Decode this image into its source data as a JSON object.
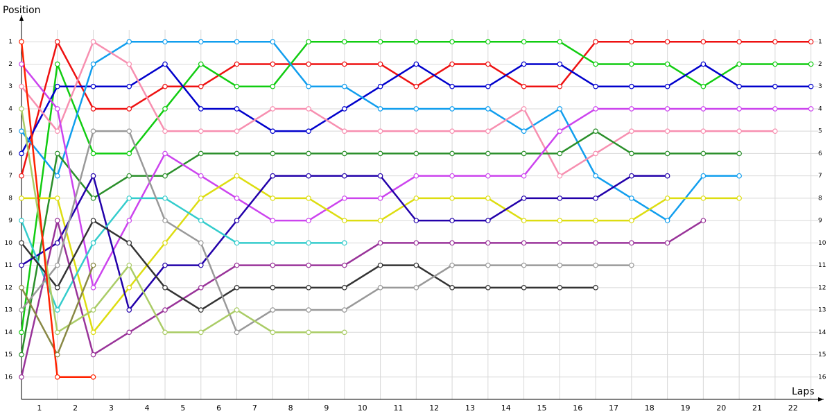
{
  "chart_data": {
    "type": "line",
    "x_label": "Laps",
    "y_label": "Position",
    "x": [
      0,
      1,
      2,
      3,
      4,
      5,
      6,
      7,
      8,
      9,
      10,
      11,
      12,
      13,
      14,
      15,
      16,
      17,
      18,
      19,
      20,
      21,
      22
    ],
    "xlim": [
      0,
      22.2
    ],
    "ylim": [
      17,
      0
    ],
    "xticks": [
      {
        "value": 0.5,
        "label": "1"
      },
      {
        "value": 1.5,
        "label": "2"
      },
      {
        "value": 2.5,
        "label": "3"
      },
      {
        "value": 3.5,
        "label": "4"
      },
      {
        "value": 4.5,
        "label": "5"
      },
      {
        "value": 5.5,
        "label": "6"
      },
      {
        "value": 6.5,
        "label": "7"
      },
      {
        "value": 7.5,
        "label": "8"
      },
      {
        "value": 8.5,
        "label": "9"
      },
      {
        "value": 9.5,
        "label": "10"
      },
      {
        "value": 10.5,
        "label": "11"
      },
      {
        "value": 11.5,
        "label": "12"
      },
      {
        "value": 12.5,
        "label": "13"
      },
      {
        "value": 13.5,
        "label": "14"
      },
      {
        "value": 14.5,
        "label": "15"
      },
      {
        "value": 15.5,
        "label": "16"
      },
      {
        "value": 16.5,
        "label": "17"
      },
      {
        "value": 17.5,
        "label": "18"
      },
      {
        "value": 18.5,
        "label": "19"
      },
      {
        "value": 19.5,
        "label": "20"
      },
      {
        "value": 20.5,
        "label": "21"
      },
      {
        "value": 21.5,
        "label": "22"
      }
    ],
    "yticks": [
      1,
      2,
      3,
      4,
      5,
      6,
      7,
      8,
      9,
      10,
      11,
      12,
      13,
      14,
      15,
      16
    ],
    "grid": true,
    "series": [
      {
        "color": "#ee1111",
        "values": [
          7,
          1,
          4,
          4,
          3,
          3,
          2,
          2,
          2,
          2,
          2,
          3,
          2,
          2,
          3,
          3,
          1,
          1,
          1,
          1,
          1,
          1,
          1
        ]
      },
      {
        "color": "#11cc11",
        "values": [
          14,
          2,
          6,
          6,
          4,
          2,
          3,
          3,
          1,
          1,
          1,
          1,
          1,
          1,
          1,
          1,
          2,
          2,
          2,
          3,
          2,
          2,
          2
        ]
      },
      {
        "color": "#0000cc",
        "values": [
          6,
          3,
          3,
          3,
          2,
          4,
          4,
          5,
          5,
          4,
          3,
          2,
          3,
          3,
          2,
          2,
          3,
          3,
          3,
          2,
          3,
          3,
          3
        ]
      },
      {
        "color": "#119eee",
        "values": [
          5,
          7,
          2,
          1,
          1,
          1,
          1,
          1,
          3,
          3,
          4,
          4,
          4,
          4,
          5,
          4,
          7,
          8,
          9,
          7,
          7,
          null,
          null
        ]
      },
      {
        "color": "#f78fb0",
        "values": [
          3,
          5,
          1,
          2,
          5,
          5,
          5,
          4,
          4,
          5,
          5,
          5,
          5,
          5,
          4,
          7,
          6,
          5,
          5,
          5,
          5,
          5,
          null
        ]
      },
      {
        "color": "#2a8f2a",
        "values": [
          15,
          6,
          8,
          7,
          7,
          6,
          6,
          6,
          6,
          6,
          6,
          6,
          6,
          6,
          6,
          6,
          5,
          6,
          6,
          6,
          6,
          null,
          null
        ]
      },
      {
        "color": "#cc44ee",
        "values": [
          2,
          4,
          12,
          9,
          6,
          7,
          8,
          9,
          9,
          8,
          8,
          7,
          7,
          7,
          7,
          5,
          4,
          4,
          4,
          4,
          4,
          4,
          4
        ]
      },
      {
        "color": "#dddd11",
        "values": [
          8,
          8,
          14,
          12,
          10,
          8,
          7,
          8,
          8,
          9,
          9,
          8,
          8,
          8,
          9,
          9,
          9,
          9,
          8,
          8,
          8,
          null,
          null
        ]
      },
      {
        "color": "#2200aa",
        "values": [
          11,
          10,
          7,
          13,
          11,
          11,
          9,
          7,
          7,
          7,
          7,
          9,
          9,
          9,
          8,
          8,
          8,
          7,
          7,
          null,
          null,
          null,
          null
        ]
      },
      {
        "color": "#33cccc",
        "values": [
          9,
          13,
          10,
          8,
          8,
          9,
          10,
          10,
          10,
          10,
          null,
          null,
          null,
          null,
          null,
          null,
          null,
          null,
          null,
          null,
          null,
          null,
          null
        ]
      },
      {
        "color": "#993399",
        "values": [
          16,
          9,
          15,
          14,
          13,
          12,
          11,
          11,
          11,
          11,
          10,
          10,
          10,
          10,
          10,
          10,
          10,
          10,
          10,
          9,
          null,
          null,
          null
        ]
      },
      {
        "color": "#333333",
        "values": [
          10,
          12,
          9,
          10,
          12,
          13,
          12,
          12,
          12,
          12,
          11,
          11,
          12,
          12,
          12,
          12,
          12,
          null,
          null,
          null,
          null,
          null,
          null
        ]
      },
      {
        "color": "#999999",
        "values": [
          13,
          11,
          5,
          5,
          9,
          10,
          14,
          13,
          13,
          13,
          12,
          12,
          11,
          11,
          11,
          11,
          11,
          11,
          null,
          null,
          null,
          null,
          null
        ]
      },
      {
        "color": "#aacc66",
        "values": [
          4,
          14,
          13,
          11,
          14,
          14,
          13,
          14,
          14,
          14,
          null,
          null,
          null,
          null,
          null,
          null,
          null,
          null,
          null,
          null,
          null,
          null,
          null
        ]
      },
      {
        "color": "#888844",
        "values": [
          12,
          15,
          11,
          null,
          null,
          null,
          null,
          null,
          null,
          null,
          null,
          null,
          null,
          null,
          null,
          null,
          null,
          null,
          null,
          null,
          null,
          null,
          null
        ]
      },
      {
        "color": "#ff2200",
        "values": [
          1,
          16,
          16,
          null,
          null,
          null,
          null,
          null,
          null,
          null,
          null,
          null,
          null,
          null,
          null,
          null,
          null,
          null,
          null,
          null,
          null,
          null,
          null
        ]
      }
    ]
  }
}
